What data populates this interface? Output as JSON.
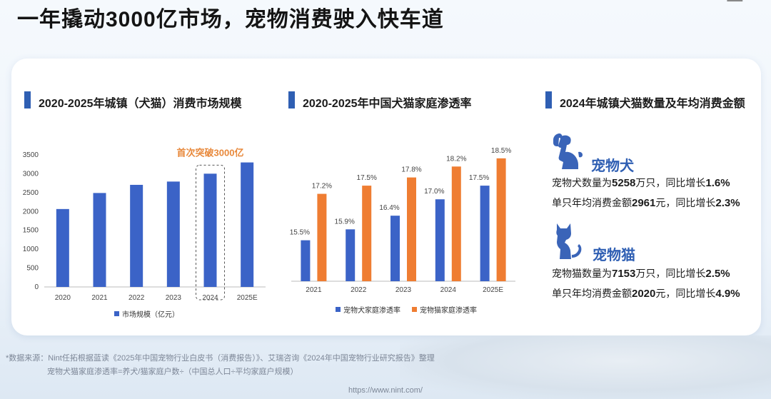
{
  "title": "一年撬动3000亿市场，宠物消费驶入快车道",
  "sections": {
    "s1_title": "2020-2025年城镇（犬猫）消费市场规模",
    "s2_title": "2020-2025年中国犬猫家庭渗透率",
    "s3_title": "2024年城镇犬猫数量及年均消费金额"
  },
  "chart_data": [
    {
      "type": "bar",
      "categories": [
        "2020",
        "2021",
        "2022",
        "2023",
        "2024",
        "2025E"
      ],
      "series": [
        {
          "name": "市场规模（亿元）",
          "values": [
            2065,
            2490,
            2706,
            2793,
            3002,
            3300
          ]
        }
      ],
      "ylim": [
        0,
        3500
      ],
      "yticks": [
        0,
        500,
        1000,
        1500,
        2000,
        2500,
        3000,
        3500
      ],
      "annotation": "首次突破3000亿",
      "highlight_category": "2024",
      "legend": "bottom-center",
      "colors": [
        "#3b63c7"
      ]
    },
    {
      "type": "bar",
      "categories": [
        "2021",
        "2022",
        "2023",
        "2024",
        "2025E"
      ],
      "series": [
        {
          "name": "宠物犬家庭渗透率",
          "values": [
            15.5,
            15.9,
            16.4,
            17.0,
            17.5
          ],
          "labels": [
            "15.5%",
            "15.9%",
            "16.4%",
            "17.0%",
            "17.5%"
          ]
        },
        {
          "name": "宠物猫家庭渗透率",
          "values": [
            17.2,
            17.5,
            17.8,
            18.2,
            18.5
          ],
          "labels": [
            "17.2%",
            "17.5%",
            "17.8%",
            "18.2%",
            "18.5%"
          ]
        }
      ],
      "legend": "bottom-center",
      "colors": [
        "#3b63c7",
        "#ef7d32"
      ]
    }
  ],
  "pets": {
    "dog": {
      "name": "宠物犬",
      "line1": {
        "pre": "宠物犬数量为",
        "num": "5258",
        "mid": "万只，同比增长",
        "rate": "1.6%"
      },
      "line2": {
        "pre": "单只年均消费金额",
        "num": "2961",
        "mid": "元，同比增长",
        "rate": "2.3%"
      }
    },
    "cat": {
      "name": "宠物猫",
      "line1": {
        "pre": "宠物猫数量为",
        "num": "7153",
        "mid": "万只，同比增长",
        "rate": "2.5%"
      },
      "line2": {
        "pre": "单只年均消费金额",
        "num": "2020",
        "mid": "元，同比增长",
        "rate": "4.9%"
      }
    }
  },
  "footnote": {
    "line1": "*数据来源：Nint任拓根据蓝读《2025年中国宠物行业白皮书（消费报告）》、艾瑞咨询《2024年中国宠物行业研究报告》整理",
    "line2": "宠物犬猫家庭渗透率=养犬/猫家庭户数÷（中国总人口÷平均家庭户规模）"
  },
  "url": "https://www.nint.com/"
}
